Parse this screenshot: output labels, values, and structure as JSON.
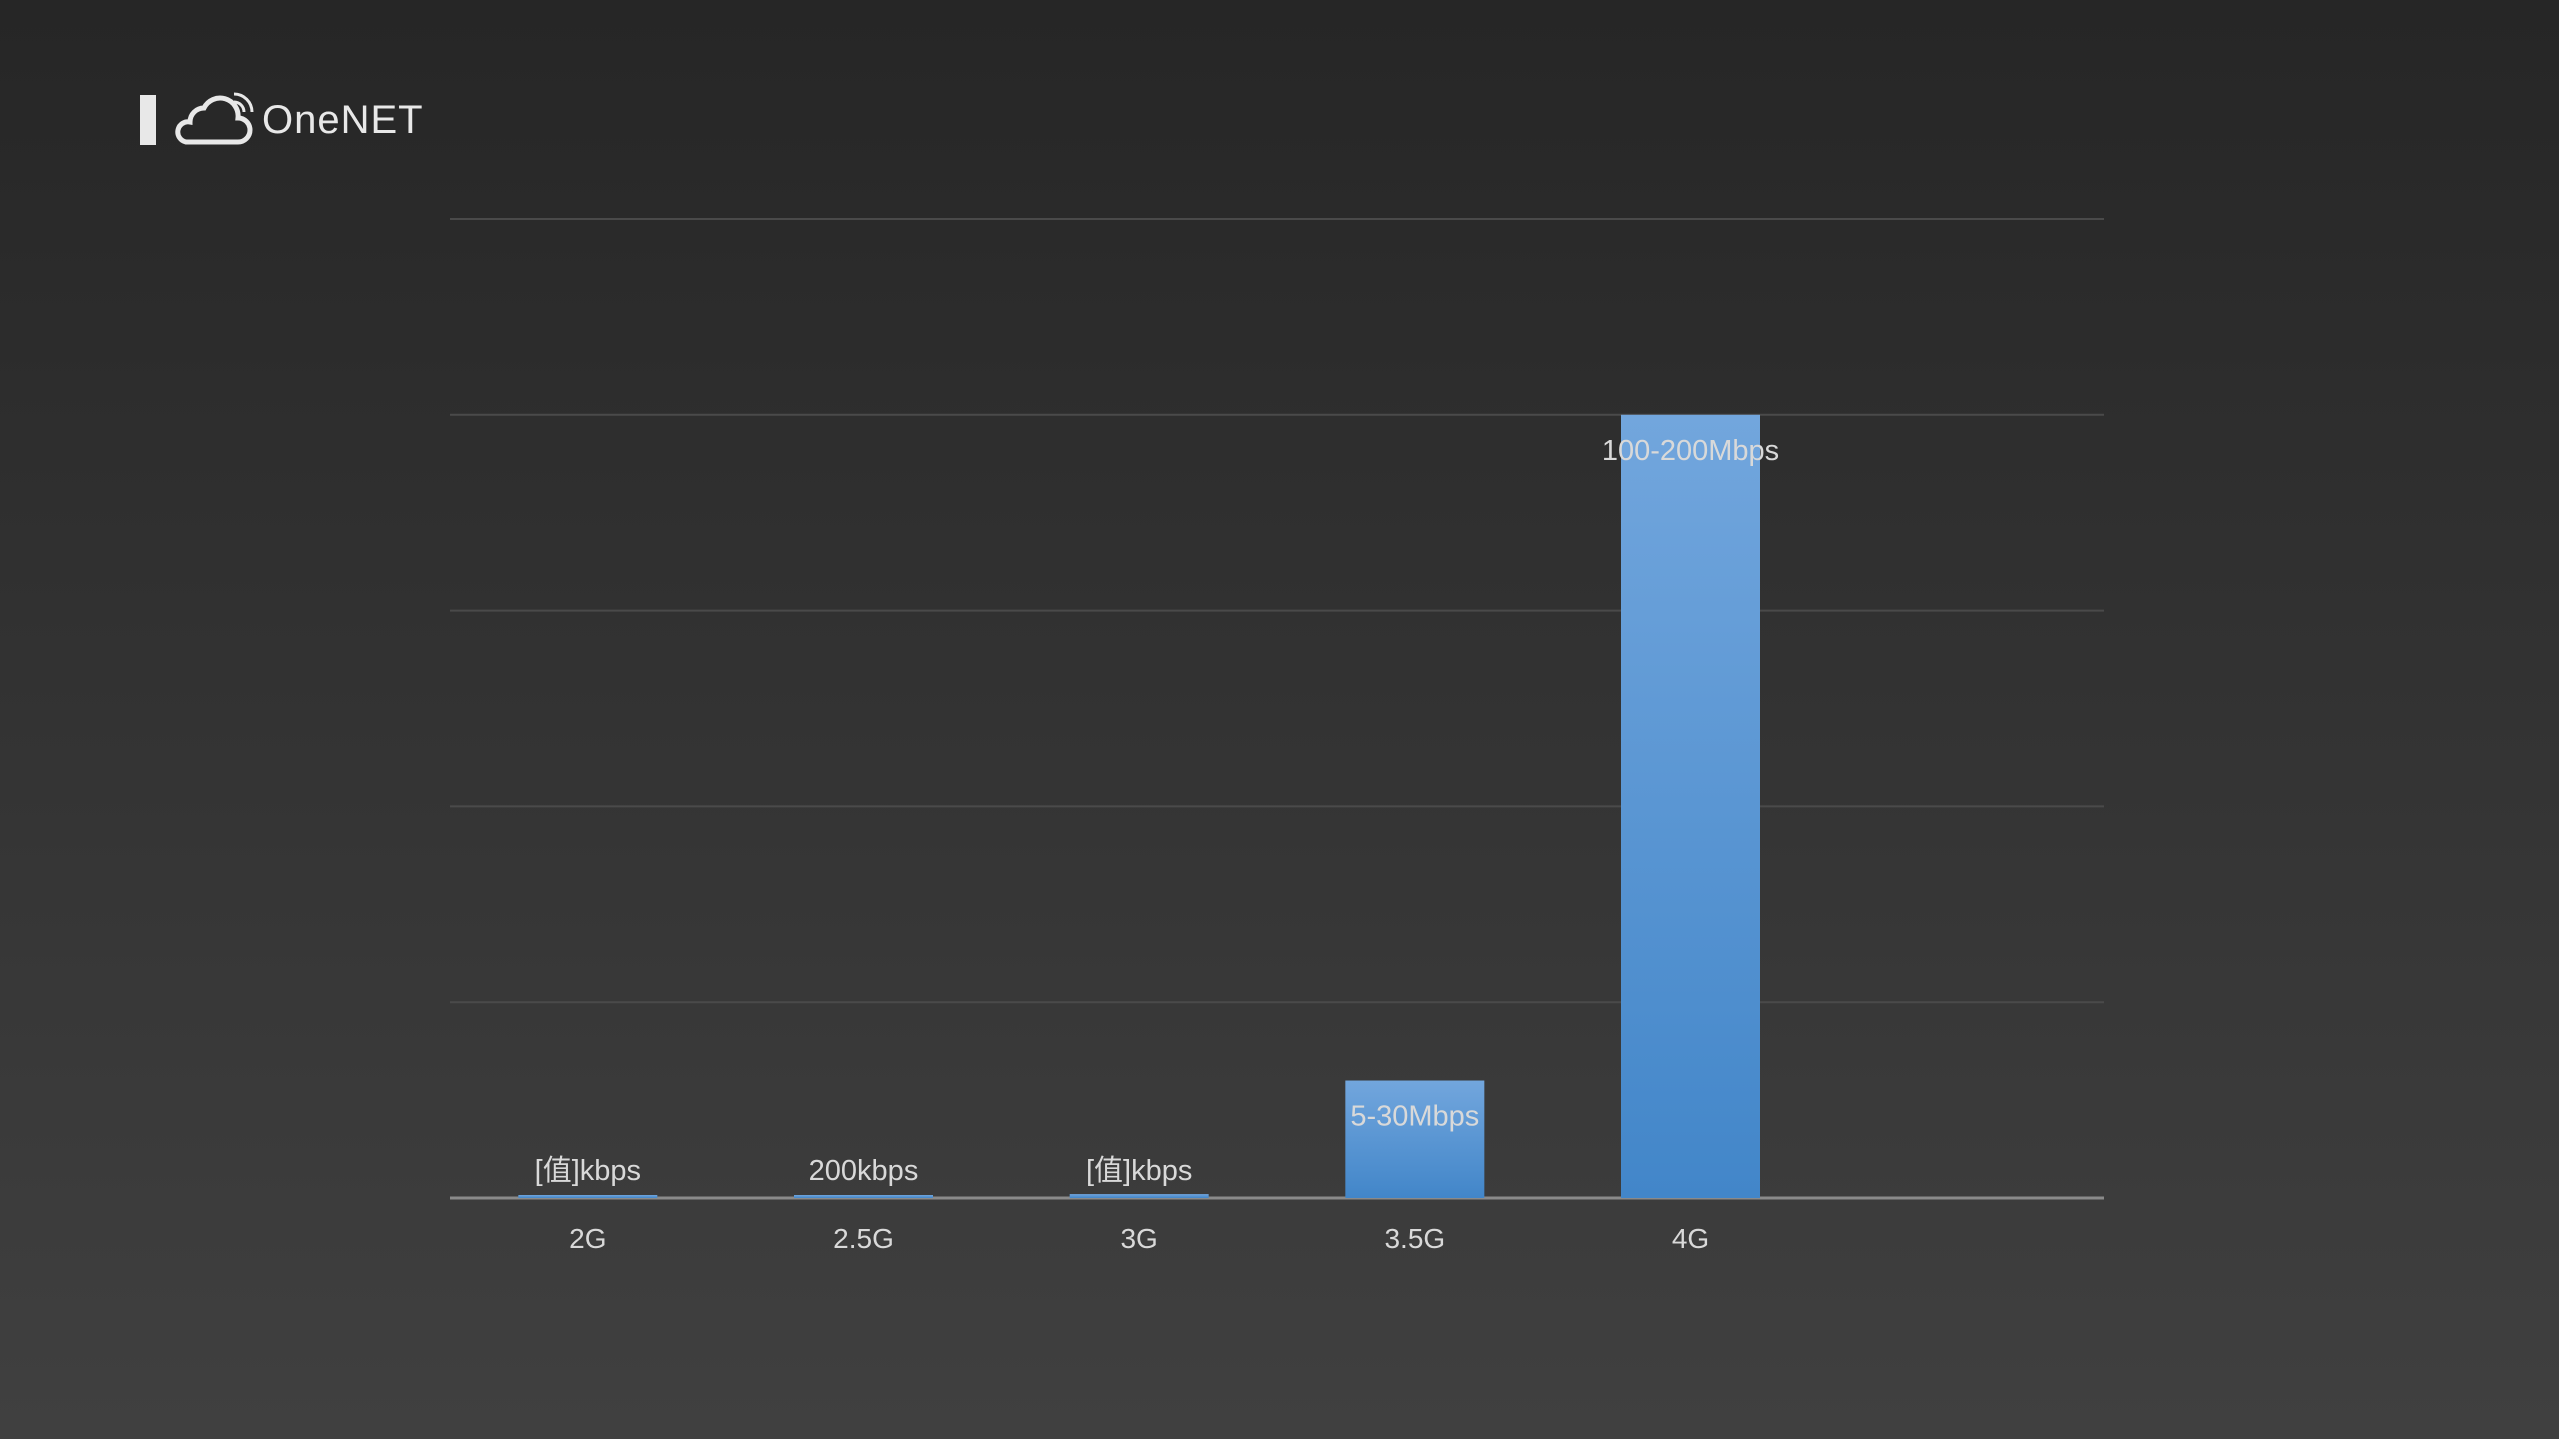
{
  "logo": {
    "text": "OneNET"
  },
  "chart_data": {
    "type": "bar",
    "categories": [
      "2G",
      "2.5G",
      "3G",
      "3.5G",
      "4G"
    ],
    "values": [
      0.5,
      0.2,
      1,
      30,
      200
    ],
    "data_labels": [
      "[值]kbps",
      "200kbps",
      "[值]kbps",
      "5-30Mbps",
      "100-200Mbps"
    ],
    "ylim": [
      0,
      250
    ],
    "grid": true,
    "bar_color_top": "#72a6dd",
    "bar_color_bottom": "#4286c9",
    "label_color": "#d9d9d9"
  }
}
